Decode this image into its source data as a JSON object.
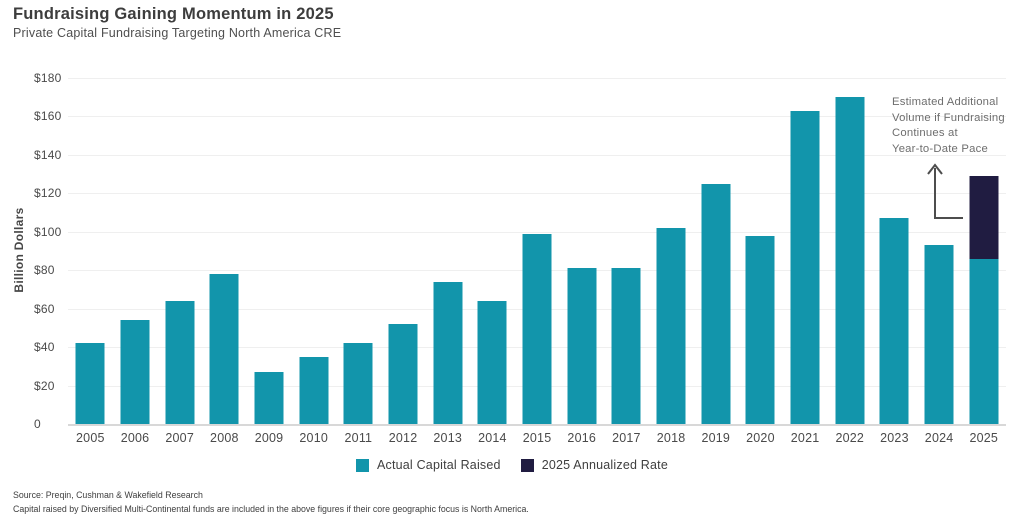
{
  "header": {
    "title": "Fundraising Gaining Momentum in 2025",
    "subtitle": "Private Capital Fundraising Targeting North America CRE"
  },
  "chart_data": {
    "type": "bar",
    "title": "Fundraising Gaining Momentum in 2025",
    "subtitle": "Private Capital Fundraising Targeting North America CRE",
    "xlabel": "",
    "ylabel": "Billion Dollars",
    "ylim": [
      0,
      180
    ],
    "ytick_step": 20,
    "grid": "horizontal",
    "legend_position": "bottom-center",
    "yticks": [
      {
        "value": 180,
        "label": "$180"
      },
      {
        "value": 160,
        "label": "$160"
      },
      {
        "value": 140,
        "label": "$140"
      },
      {
        "value": 120,
        "label": "$120"
      },
      {
        "value": 100,
        "label": "$100"
      },
      {
        "value": 80,
        "label": "$80"
      },
      {
        "value": 60,
        "label": "$60"
      },
      {
        "value": 40,
        "label": "$40"
      },
      {
        "value": 20,
        "label": "$20"
      },
      {
        "value": 0,
        "label": "0"
      }
    ],
    "categories": [
      "2005",
      "2006",
      "2007",
      "2008",
      "2009",
      "2010",
      "2011",
      "2012",
      "2013",
      "2014",
      "2015",
      "2016",
      "2017",
      "2018",
      "2019",
      "2020",
      "2021",
      "2022",
      "2023",
      "2024",
      "2025"
    ],
    "series": [
      {
        "name": "Actual Capital Raised",
        "color": "#1295AB",
        "values": [
          42,
          54,
          64,
          78,
          27,
          35,
          42,
          52,
          74,
          64,
          99,
          81,
          81,
          102,
          125,
          98,
          163,
          170,
          107,
          93,
          86
        ]
      },
      {
        "name": "2025 Annualized Rate",
        "color": "#201C41",
        "note": "stacked segment shown only for 2025; annualized total ~129",
        "values": [
          0,
          0,
          0,
          0,
          0,
          0,
          0,
          0,
          0,
          0,
          0,
          0,
          0,
          0,
          0,
          0,
          0,
          0,
          0,
          0,
          43
        ]
      }
    ],
    "annotation": {
      "lines": [
        "Estimated Additional",
        "Volume if Fundraising",
        "Continues at",
        "Year-to-Date Pace"
      ],
      "arrow": "L-shaped arrow pointing up, from left side of 2025 stacked bar"
    }
  },
  "footer": {
    "source": "Source: Preqin, Cushman & Wakefield Research",
    "note": "Capital raised by Diversified Multi-Continental funds are included in the above figures if their core geographic focus is North America."
  }
}
